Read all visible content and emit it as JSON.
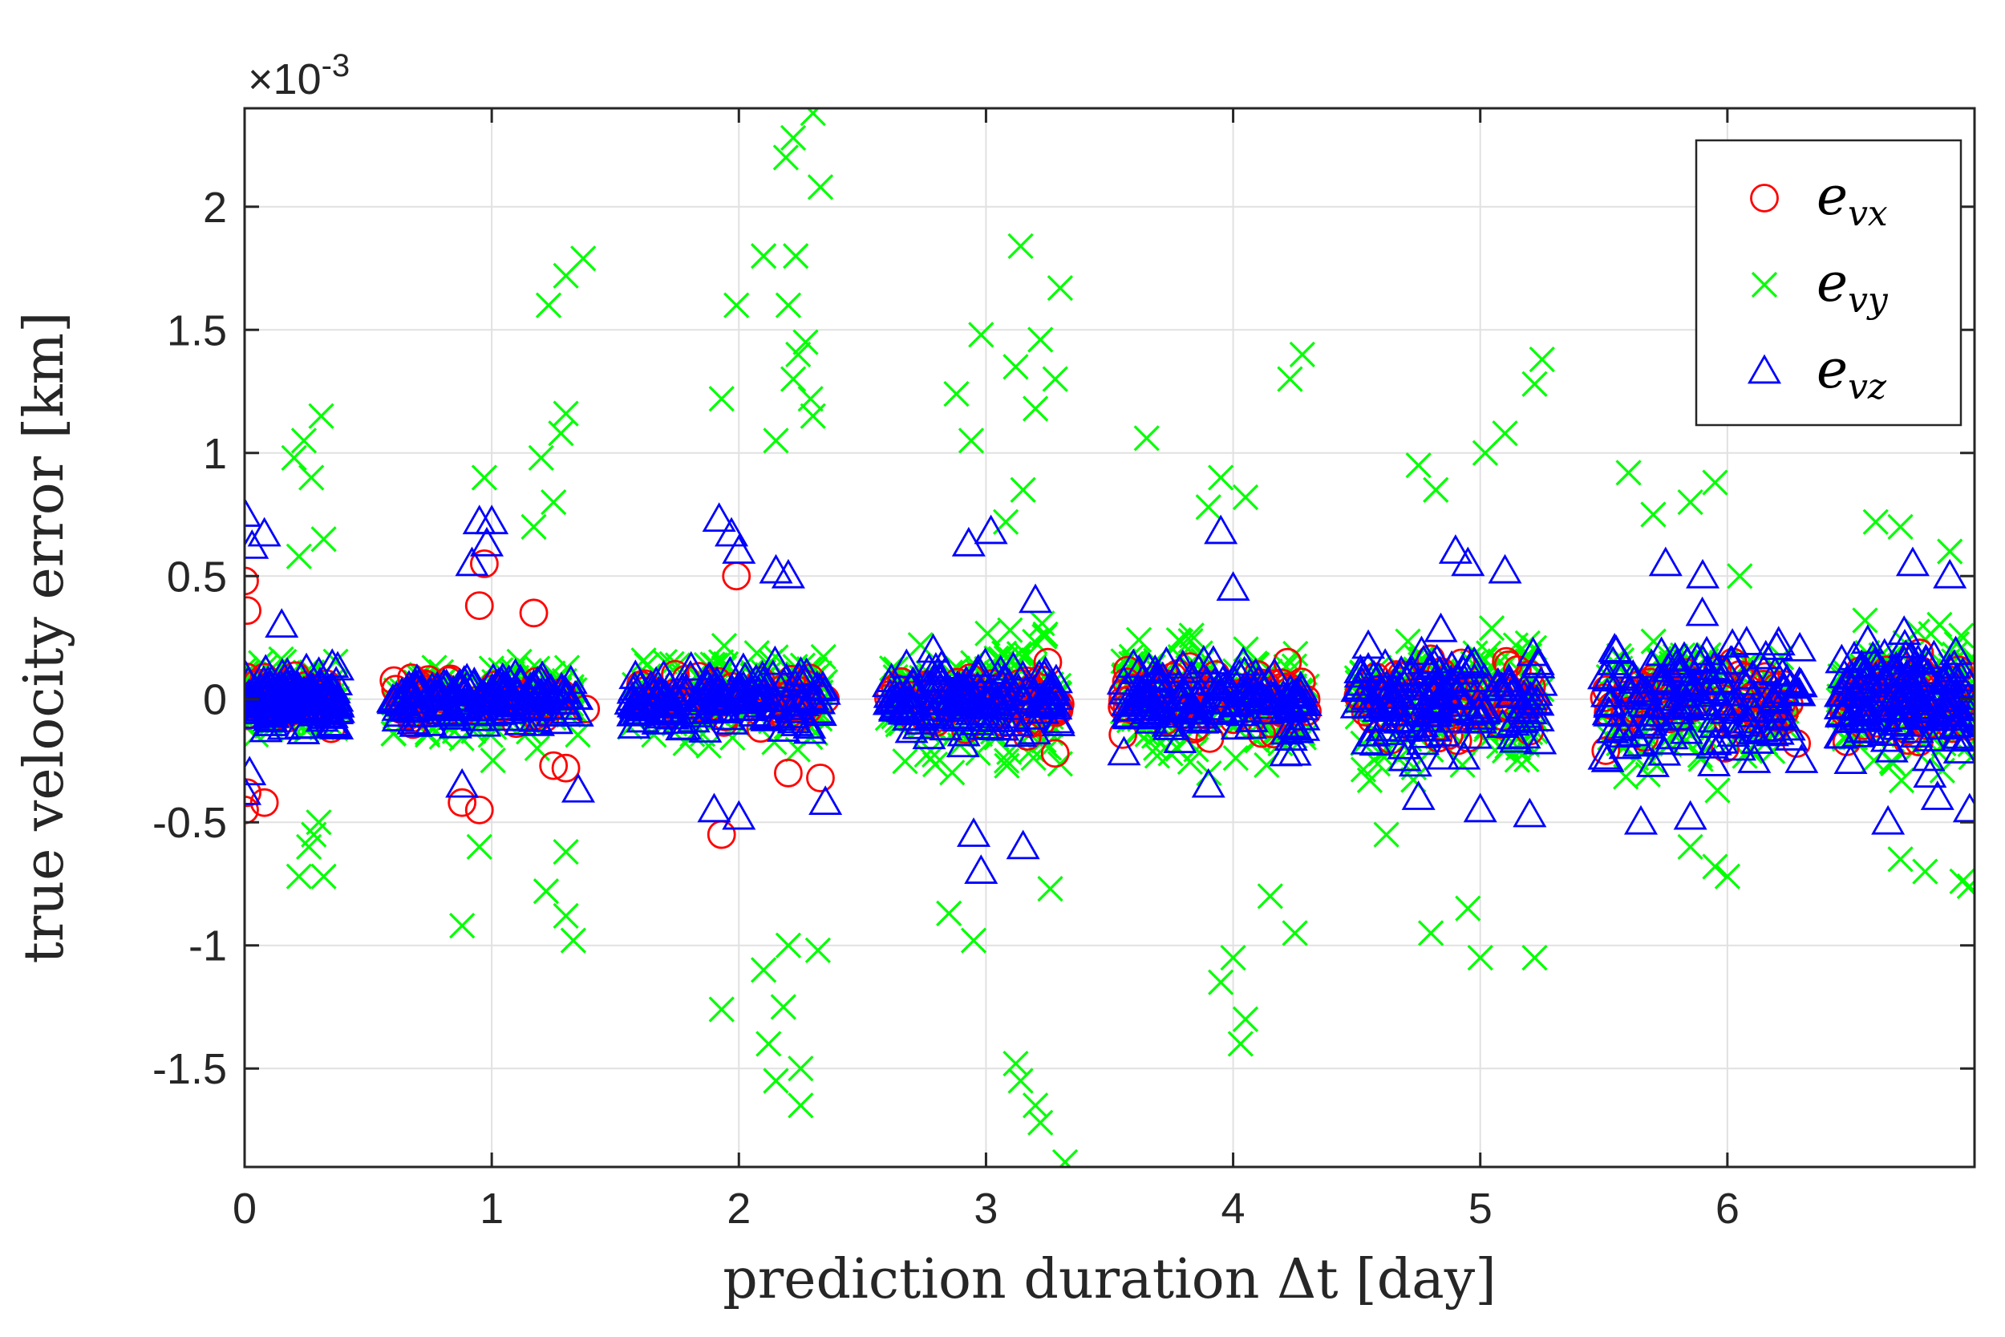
{
  "chart_data": {
    "type": "scatter",
    "title": "",
    "xlabel": "prediction duration Δt [day]",
    "ylabel": "true velocity error [km]",
    "xlim": [
      0,
      7
    ],
    "ylim": [
      -1.9,
      2.4
    ],
    "x_ticks": [
      0,
      1,
      2,
      3,
      4,
      5,
      6
    ],
    "x_tick_labels": [
      "0",
      "1",
      "2",
      "3",
      "4",
      "5",
      "6"
    ],
    "y_ticks": [
      -1.5,
      -1,
      -0.5,
      0,
      0.5,
      1,
      1.5,
      2
    ],
    "y_tick_labels": [
      "-1.5",
      "-1",
      "-0.5",
      "0",
      "0.5",
      "1",
      "1.5",
      "2"
    ],
    "y_exponent_label": "×10",
    "y_exponent_power": "-3",
    "y_scale_factor": 0.001,
    "grid": true,
    "legend_position": "top-right",
    "legend": [
      {
        "label_main": "e",
        "label_sub": "vx",
        "marker": "circle",
        "color": "#ff0000"
      },
      {
        "label_main": "e",
        "label_sub": "vy",
        "marker": "x",
        "color": "#00ff00"
      },
      {
        "label_main": "e",
        "label_sub": "vz",
        "marker": "triangle",
        "color": "#0000ff"
      }
    ],
    "series": [
      {
        "name": "e_vx",
        "marker": "circle",
        "color": "#ff0000",
        "clusters": [
          {
            "x": [
              0.0,
              0.35
            ],
            "spread": 0.07
          },
          {
            "x": [
              0.6,
              1.3
            ],
            "spread": 0.08
          },
          {
            "x": [
              1.6,
              2.35
            ],
            "spread": 0.09
          },
          {
            "x": [
              2.6,
              3.3
            ],
            "spread": 0.1
          },
          {
            "x": [
              3.55,
              4.3
            ],
            "spread": 0.12
          },
          {
            "x": [
              4.5,
              5.25
            ],
            "spread": 0.13
          },
          {
            "x": [
              5.5,
              6.25
            ],
            "spread": 0.14
          },
          {
            "x": [
              6.45,
              7.0
            ],
            "spread": 0.14
          }
        ],
        "points": [
          {
            "x": 0.0,
            "y": 0.48
          },
          {
            "x": 0.01,
            "y": 0.36
          },
          {
            "x": 0.0,
            "y": -0.45
          },
          {
            "x": 0.01,
            "y": -0.38
          },
          {
            "x": 0.08,
            "y": -0.42
          },
          {
            "x": 0.35,
            "y": -0.12
          },
          {
            "x": 0.97,
            "y": 0.55
          },
          {
            "x": 0.95,
            "y": 0.38
          },
          {
            "x": 0.95,
            "y": -0.45
          },
          {
            "x": 0.88,
            "y": -0.42
          },
          {
            "x": 1.17,
            "y": 0.35
          },
          {
            "x": 1.25,
            "y": -0.27
          },
          {
            "x": 1.3,
            "y": -0.28
          },
          {
            "x": 1.38,
            "y": -0.04
          },
          {
            "x": 1.99,
            "y": 0.5
          },
          {
            "x": 1.93,
            "y": -0.55
          },
          {
            "x": 2.2,
            "y": -0.3
          },
          {
            "x": 2.33,
            "y": -0.32
          },
          {
            "x": 2.35,
            "y": 0.0
          },
          {
            "x": 3.22,
            "y": 0.08
          },
          {
            "x": 3.25,
            "y": 0.15
          },
          {
            "x": 3.28,
            "y": -0.22
          },
          {
            "x": 3.3,
            "y": -0.02
          },
          {
            "x": 3.18,
            "y": -0.1
          },
          {
            "x": 4.1,
            "y": 0.1
          },
          {
            "x": 4.2,
            "y": 0.05
          },
          {
            "x": 4.25,
            "y": -0.05
          },
          {
            "x": 4.22,
            "y": 0.15
          },
          {
            "x": 4.3,
            "y": -0.05
          },
          {
            "x": 4.15,
            "y": -0.1
          },
          {
            "x": 5.1,
            "y": 0.05
          },
          {
            "x": 5.2,
            "y": 0.1
          },
          {
            "x": 5.22,
            "y": -0.02
          },
          {
            "x": 5.2,
            "y": -0.13
          },
          {
            "x": 5.15,
            "y": 0.12
          },
          {
            "x": 6.05,
            "y": 0.1
          },
          {
            "x": 6.1,
            "y": -0.05
          },
          {
            "x": 6.2,
            "y": 0.05
          },
          {
            "x": 6.25,
            "y": -0.02
          },
          {
            "x": 6.28,
            "y": -0.18
          }
        ]
      },
      {
        "name": "e_vy",
        "marker": "x",
        "color": "#00ff00",
        "clusters": [
          {
            "x": [
              0.0,
              0.38
            ],
            "spread": 0.12
          },
          {
            "x": [
              0.6,
              1.35
            ],
            "spread": 0.14
          },
          {
            "x": [
              1.55,
              2.35
            ],
            "spread": 0.16
          },
          {
            "x": [
              2.6,
              3.3
            ],
            "spread": 0.2
          },
          {
            "x": [
              3.55,
              4.3
            ],
            "spread": 0.22
          },
          {
            "x": [
              4.5,
              5.25
            ],
            "spread": 0.22
          },
          {
            "x": [
              5.5,
              6.25
            ],
            "spread": 0.2
          },
          {
            "x": [
              6.45,
              7.0
            ],
            "spread": 0.22
          }
        ],
        "points": [
          {
            "x": 0.31,
            "y": 1.15
          },
          {
            "x": 0.24,
            "y": 1.05
          },
          {
            "x": 0.2,
            "y": 0.98
          },
          {
            "x": 0.27,
            "y": 0.9
          },
          {
            "x": 0.32,
            "y": 0.65
          },
          {
            "x": 0.22,
            "y": 0.58
          },
          {
            "x": 0.28,
            "y": -0.55
          },
          {
            "x": 0.32,
            "y": -0.72
          },
          {
            "x": 0.22,
            "y": -0.72
          },
          {
            "x": 0.26,
            "y": -0.6
          },
          {
            "x": 0.3,
            "y": -0.5
          },
          {
            "x": 1.37,
            "y": 1.79
          },
          {
            "x": 1.3,
            "y": 1.72
          },
          {
            "x": 1.23,
            "y": 1.6
          },
          {
            "x": 1.3,
            "y": 1.16
          },
          {
            "x": 1.28,
            "y": 1.08
          },
          {
            "x": 1.2,
            "y": 0.98
          },
          {
            "x": 0.97,
            "y": 0.9
          },
          {
            "x": 1.25,
            "y": 0.8
          },
          {
            "x": 1.17,
            "y": 0.7
          },
          {
            "x": 0.88,
            "y": -0.92
          },
          {
            "x": 1.33,
            "y": -0.98
          },
          {
            "x": 1.3,
            "y": -0.88
          },
          {
            "x": 1.22,
            "y": -0.78
          },
          {
            "x": 1.3,
            "y": -0.62
          },
          {
            "x": 0.95,
            "y": -0.6
          },
          {
            "x": 2.3,
            "y": 2.38
          },
          {
            "x": 2.22,
            "y": 2.28
          },
          {
            "x": 2.19,
            "y": 2.2
          },
          {
            "x": 2.33,
            "y": 2.08
          },
          {
            "x": 2.1,
            "y": 1.8
          },
          {
            "x": 2.23,
            "y": 1.8
          },
          {
            "x": 1.99,
            "y": 1.6
          },
          {
            "x": 2.2,
            "y": 1.6
          },
          {
            "x": 2.27,
            "y": 1.45
          },
          {
            "x": 2.24,
            "y": 1.4
          },
          {
            "x": 2.22,
            "y": 1.3
          },
          {
            "x": 1.93,
            "y": 1.22
          },
          {
            "x": 2.29,
            "y": 1.22
          },
          {
            "x": 2.3,
            "y": 1.15
          },
          {
            "x": 2.15,
            "y": 1.05
          },
          {
            "x": 1.93,
            "y": -1.26
          },
          {
            "x": 2.12,
            "y": -1.4
          },
          {
            "x": 2.15,
            "y": -1.55
          },
          {
            "x": 2.25,
            "y": -1.65
          },
          {
            "x": 2.25,
            "y": -1.5
          },
          {
            "x": 2.18,
            "y": -1.25
          },
          {
            "x": 2.1,
            "y": -1.1
          },
          {
            "x": 2.32,
            "y": -1.02
          },
          {
            "x": 2.2,
            "y": -1.0
          },
          {
            "x": 3.14,
            "y": 1.84
          },
          {
            "x": 3.3,
            "y": 1.67
          },
          {
            "x": 2.98,
            "y": 1.48
          },
          {
            "x": 3.22,
            "y": 1.46
          },
          {
            "x": 3.28,
            "y": 1.3
          },
          {
            "x": 3.12,
            "y": 1.35
          },
          {
            "x": 3.2,
            "y": 1.18
          },
          {
            "x": 2.88,
            "y": 1.24
          },
          {
            "x": 2.94,
            "y": 1.05
          },
          {
            "x": 3.15,
            "y": 0.85
          },
          {
            "x": 3.08,
            "y": 0.72
          },
          {
            "x": 3.12,
            "y": -1.48
          },
          {
            "x": 3.14,
            "y": -1.55
          },
          {
            "x": 3.2,
            "y": -1.65
          },
          {
            "x": 3.22,
            "y": -1.72
          },
          {
            "x": 3.32,
            "y": -1.88
          },
          {
            "x": 3.26,
            "y": -0.77
          },
          {
            "x": 2.95,
            "y": -0.98
          },
          {
            "x": 2.85,
            "y": -0.87
          },
          {
            "x": 4.28,
            "y": 1.4
          },
          {
            "x": 4.23,
            "y": 1.3
          },
          {
            "x": 3.65,
            "y": 1.06
          },
          {
            "x": 3.95,
            "y": 0.9
          },
          {
            "x": 4.05,
            "y": 0.82
          },
          {
            "x": 3.9,
            "y": 0.78
          },
          {
            "x": 3.95,
            "y": -1.15
          },
          {
            "x": 4.05,
            "y": -1.3
          },
          {
            "x": 4.03,
            "y": -1.4
          },
          {
            "x": 4.0,
            "y": -1.05
          },
          {
            "x": 4.25,
            "y": -0.95
          },
          {
            "x": 4.15,
            "y": -0.8
          },
          {
            "x": 5.1,
            "y": 1.08
          },
          {
            "x": 5.02,
            "y": 1.0
          },
          {
            "x": 5.22,
            "y": 1.28
          },
          {
            "x": 5.25,
            "y": 1.38
          },
          {
            "x": 4.75,
            "y": 0.95
          },
          {
            "x": 4.82,
            "y": 0.85
          },
          {
            "x": 5.0,
            "y": -1.05
          },
          {
            "x": 5.22,
            "y": -1.05
          },
          {
            "x": 4.8,
            "y": -0.95
          },
          {
            "x": 4.95,
            "y": -0.85
          },
          {
            "x": 4.62,
            "y": -0.55
          },
          {
            "x": 5.6,
            "y": 0.92
          },
          {
            "x": 5.95,
            "y": 0.88
          },
          {
            "x": 5.85,
            "y": 0.8
          },
          {
            "x": 5.7,
            "y": 0.75
          },
          {
            "x": 6.05,
            "y": 0.5
          },
          {
            "x": 5.95,
            "y": -0.68
          },
          {
            "x": 6.0,
            "y": -0.72
          },
          {
            "x": 5.85,
            "y": -0.6
          },
          {
            "x": 6.6,
            "y": 0.72
          },
          {
            "x": 6.7,
            "y": 0.7
          },
          {
            "x": 6.9,
            "y": 0.6
          },
          {
            "x": 6.95,
            "y": -0.74
          },
          {
            "x": 6.98,
            "y": -0.76
          },
          {
            "x": 6.8,
            "y": -0.7
          },
          {
            "x": 6.7,
            "y": -0.65
          }
        ]
      },
      {
        "name": "e_vz",
        "marker": "triangle",
        "color": "#0000ff",
        "clusters": [
          {
            "x": [
              0.0,
              0.38
            ],
            "spread": 0.09
          },
          {
            "x": [
              0.6,
              1.35
            ],
            "spread": 0.08
          },
          {
            "x": [
              1.55,
              2.35
            ],
            "spread": 0.1
          },
          {
            "x": [
              2.6,
              3.3
            ],
            "spread": 0.12
          },
          {
            "x": [
              3.55,
              4.3
            ],
            "spread": 0.13
          },
          {
            "x": [
              4.5,
              5.25
            ],
            "spread": 0.17
          },
          {
            "x": [
              5.5,
              6.3
            ],
            "spread": 0.19
          },
          {
            "x": [
              6.45,
              7.0
            ],
            "spread": 0.2
          }
        ],
        "points": [
          {
            "x": 0.0,
            "y": 0.75
          },
          {
            "x": 0.08,
            "y": 0.67
          },
          {
            "x": 0.03,
            "y": 0.62
          },
          {
            "x": 0.0,
            "y": -0.38
          },
          {
            "x": 0.02,
            "y": -0.3
          },
          {
            "x": 0.15,
            "y": 0.3
          },
          {
            "x": 0.95,
            "y": 0.72
          },
          {
            "x": 1.0,
            "y": 0.72
          },
          {
            "x": 0.98,
            "y": 0.63
          },
          {
            "x": 0.92,
            "y": 0.55
          },
          {
            "x": 0.88,
            "y": -0.35
          },
          {
            "x": 1.35,
            "y": -0.37
          },
          {
            "x": 1.92,
            "y": 0.73
          },
          {
            "x": 1.97,
            "y": 0.67
          },
          {
            "x": 2.0,
            "y": 0.6
          },
          {
            "x": 2.15,
            "y": 0.52
          },
          {
            "x": 2.2,
            "y": 0.5
          },
          {
            "x": 1.9,
            "y": -0.45
          },
          {
            "x": 2.0,
            "y": -0.48
          },
          {
            "x": 2.35,
            "y": -0.42
          },
          {
            "x": 3.02,
            "y": 0.68
          },
          {
            "x": 2.93,
            "y": 0.63
          },
          {
            "x": 2.98,
            "y": -0.7
          },
          {
            "x": 3.15,
            "y": -0.6
          },
          {
            "x": 2.95,
            "y": -0.55
          },
          {
            "x": 3.2,
            "y": 0.4
          },
          {
            "x": 3.95,
            "y": 0.68
          },
          {
            "x": 4.0,
            "y": 0.45
          },
          {
            "x": 3.9,
            "y": -0.35
          },
          {
            "x": 4.25,
            "y": -0.22
          },
          {
            "x": 4.9,
            "y": 0.6
          },
          {
            "x": 4.95,
            "y": 0.55
          },
          {
            "x": 5.1,
            "y": 0.52
          },
          {
            "x": 5.0,
            "y": -0.45
          },
          {
            "x": 4.75,
            "y": -0.4
          },
          {
            "x": 5.2,
            "y": -0.47
          },
          {
            "x": 5.75,
            "y": 0.55
          },
          {
            "x": 5.9,
            "y": 0.5
          },
          {
            "x": 5.65,
            "y": -0.5
          },
          {
            "x": 5.85,
            "y": -0.48
          },
          {
            "x": 6.3,
            "y": -0.25
          },
          {
            "x": 6.75,
            "y": 0.55
          },
          {
            "x": 6.9,
            "y": 0.5
          },
          {
            "x": 6.65,
            "y": -0.5
          },
          {
            "x": 6.98,
            "y": -0.45
          },
          {
            "x": 6.85,
            "y": -0.4
          }
        ]
      }
    ]
  }
}
